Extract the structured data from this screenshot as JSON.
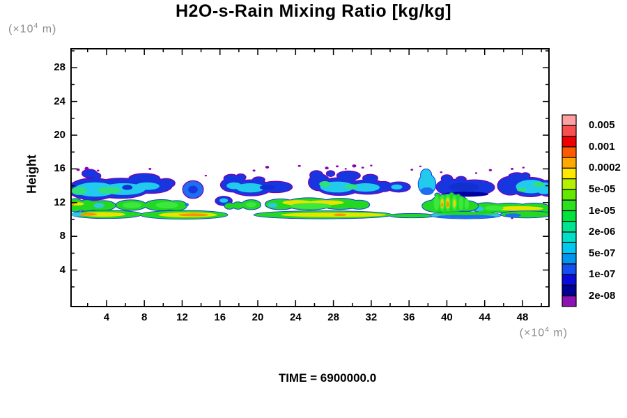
{
  "title": "H2O-s-Rain Mixing Ratio [kg/kg]",
  "time_label": "TIME = 6900000.0",
  "unit": {
    "prefix": "(×10",
    "sup": "4",
    "suffix": " m)"
  },
  "x_axis": {
    "min": 0.25,
    "max": 50.8,
    "minor_step": 2,
    "major_values": [
      4,
      8,
      12,
      16,
      20,
      24,
      28,
      32,
      36,
      40,
      44,
      48
    ],
    "major_labels": [
      "4",
      "8",
      "12",
      "16",
      "20",
      "24",
      "28",
      "32",
      "36",
      "40",
      "44",
      "48"
    ]
  },
  "y_axis": {
    "label": "Height",
    "min": -0.33,
    "max": 30.25,
    "minor_step": 2,
    "major_values": [
      4,
      8,
      12,
      16,
      20,
      24,
      28
    ],
    "major_labels": [
      "4",
      "8",
      "12",
      "16",
      "20",
      "24",
      "28"
    ]
  },
  "colorbar": {
    "levels": [
      "0.005",
      "0.001",
      "0.0002",
      "5e-05",
      "1e-05",
      "2e-06",
      "5e-07",
      "1e-07",
      "2e-08"
    ],
    "colors_top_to_bottom": [
      "#FFA0A0",
      "#F85050",
      "#F00000",
      "#FF5A00",
      "#FFA800",
      "#FFE800",
      "#B4F000",
      "#64E800",
      "#2CE020",
      "#00E23C",
      "#00E492",
      "#00E0C8",
      "#00C8F0",
      "#0096F0",
      "#1450F0",
      "#0A0ADC",
      "#000096",
      "#8C14B4"
    ]
  },
  "chart_data": {
    "type": "heatmap",
    "title": "H2O-s-Rain Mixing Ratio [kg/kg]",
    "xlabel": "(×10^4 m)",
    "ylabel": "Height (×10^4 m)",
    "x_range": [
      0.25,
      50.8
    ],
    "y_range": [
      0,
      30.25
    ],
    "contour_levels_kg_per_kg": [
      "2e-08",
      "1e-07",
      "5e-07",
      "2e-06",
      "1e-05",
      "5e-05",
      "0.0002",
      "0.001",
      "0.005"
    ],
    "summary_features": [
      "upper snow/rain layer, height 12.5-16 x10^4 m, values ~1e-07 to 2e-06 (blue/cyan clouds with purple 2e-08 fringe)",
      "middle layer, height 11-12.5 x10^4 m, values ~1e-05 to 5e-05 (green blobs with yellow tops)",
      "thin low band, height 10.3-11 x10^4 m, values up to 0.0002 (yellow-orange cores)",
      "convective striped column cluster near x=39-42, purple specks scattered above main layer"
    ],
    "groups": [
      {
        "name": "blue-main-left",
        "fill": "#1736E0",
        "stroke": "#7A00B4",
        "sw": 2.5,
        "body": [
          [
            2.6,
            13.6,
            2.6,
            1.25
          ],
          [
            5.5,
            13.7,
            3.0,
            1.15
          ],
          [
            8.7,
            14.0,
            2.2,
            0.85
          ],
          [
            10.3,
            14.3,
            0.9,
            0.5
          ],
          [
            8.0,
            14.85,
            1.6,
            0.55
          ],
          [
            2.2,
            15.45,
            0.75,
            0.45
          ],
          [
            2.9,
            15.15,
            0.45,
            0.35
          ]
        ],
        "cores": [
          [
            2.8,
            13.55,
            2.2,
            0.85,
            "#22CBEE"
          ],
          [
            5.8,
            13.6,
            2.3,
            0.7,
            "#22CBEE"
          ],
          [
            8.3,
            13.95,
            1.3,
            0.45,
            "#22CBEE"
          ],
          [
            1.1,
            13.4,
            0.8,
            0.5,
            "#30E07A"
          ],
          [
            4.3,
            13.45,
            1.2,
            0.4,
            "#30E07A"
          ],
          [
            6.2,
            13.8,
            0.55,
            0.3,
            "#1030D0"
          ]
        ]
      },
      {
        "name": "blue-circle",
        "fill": "#1E6EF0",
        "stroke": "#7A00B4",
        "sw": 2.5,
        "body": [
          [
            13.15,
            13.55,
            1.05,
            1.0
          ]
        ],
        "cores": [
          [
            13.15,
            13.55,
            0.5,
            0.45,
            "#1736E0"
          ]
        ]
      },
      {
        "name": "blue-cloud2",
        "fill": "#1736E0",
        "stroke": "#7A00B4",
        "sw": 2.5,
        "body": [
          [
            17.4,
            14.1,
            1.3,
            0.8
          ],
          [
            19.3,
            13.75,
            2.1,
            0.9
          ],
          [
            21.9,
            13.85,
            1.7,
            0.62
          ],
          [
            17.2,
            14.85,
            0.75,
            0.45
          ],
          [
            18.2,
            15.0,
            0.5,
            0.35
          ],
          [
            20.1,
            14.7,
            0.6,
            0.3
          ],
          [
            16.4,
            12.2,
            0.85,
            0.5
          ]
        ],
        "cores": [
          [
            19.2,
            13.75,
            1.5,
            0.55,
            "#22CBEE"
          ],
          [
            17.5,
            14.0,
            0.8,
            0.4,
            "#22CBEE"
          ],
          [
            21.0,
            13.8,
            0.8,
            0.3,
            "#1030D0"
          ],
          [
            16.4,
            12.25,
            0.45,
            0.26,
            "#22CBEE"
          ]
        ]
      },
      {
        "name": "blue-cloud3",
        "fill": "#1736E0",
        "stroke": "#7A00B4",
        "sw": 2.5,
        "body": [
          [
            26.5,
            14.4,
            1.1,
            0.95
          ],
          [
            28.6,
            13.9,
            2.3,
            1.0
          ],
          [
            31.6,
            13.85,
            2.1,
            0.8
          ],
          [
            33.3,
            13.9,
            0.9,
            0.55
          ],
          [
            26.2,
            15.25,
            0.65,
            0.5
          ],
          [
            29.6,
            15.2,
            1.2,
            0.5
          ],
          [
            31.9,
            14.9,
            0.75,
            0.4
          ],
          [
            27.7,
            15.45,
            0.4,
            0.3
          ],
          [
            34.9,
            13.85,
            1.2,
            0.55
          ]
        ],
        "cores": [
          [
            28.4,
            13.85,
            1.8,
            0.65,
            "#22CBEE"
          ],
          [
            31.4,
            13.8,
            1.5,
            0.5,
            "#22CBEE"
          ],
          [
            27.1,
            14.2,
            0.6,
            0.35,
            "#30E07A"
          ],
          [
            29.9,
            13.9,
            0.7,
            0.3,
            "#30E07A"
          ],
          [
            34.7,
            13.85,
            0.6,
            0.3,
            "#22CBEE"
          ]
        ]
      },
      {
        "name": "cyan-tall-plume",
        "fill": "#22CBEE",
        "stroke": "#1736E0",
        "sw": 2,
        "body": [
          [
            37.9,
            14.2,
            0.9,
            1.2
          ],
          [
            37.8,
            15.3,
            0.55,
            0.65
          ]
        ],
        "cores": [
          [
            37.9,
            13.35,
            0.7,
            0.45,
            "#1E6EF0"
          ]
        ]
      },
      {
        "name": "blue-dark-mass",
        "fill": "#1736E0",
        "stroke": "#7A00B4",
        "sw": 2.5,
        "body": [
          [
            40.4,
            13.85,
            1.5,
            0.9
          ],
          [
            42.9,
            13.8,
            2.1,
            0.85
          ],
          [
            40.0,
            14.85,
            0.55,
            0.4
          ],
          [
            41.5,
            14.75,
            0.5,
            0.3
          ]
        ],
        "cores": [
          [
            41.8,
            13.85,
            1.6,
            0.5,
            "#1030D0"
          ],
          [
            42.0,
            13.0,
            2.4,
            0.3,
            "#0000A0"
          ]
        ]
      },
      {
        "name": "blue-right-cloud",
        "fill": "#1736E0",
        "stroke": "#7A00B4",
        "sw": 2.5,
        "body": [
          [
            46.7,
            14.0,
            1.3,
            1.05
          ],
          [
            48.8,
            13.85,
            2.0,
            1.1
          ],
          [
            50.7,
            13.7,
            1.1,
            0.9
          ],
          [
            47.4,
            15.05,
            0.85,
            0.45
          ],
          [
            48.3,
            15.2,
            0.45,
            0.3
          ]
        ],
        "cores": [
          [
            48.9,
            13.9,
            1.6,
            0.8,
            "#22CBEE"
          ],
          [
            50.3,
            13.7,
            0.9,
            0.7,
            "#22CBEE"
          ],
          [
            49.7,
            14.15,
            0.6,
            0.3,
            "#30E07A"
          ],
          [
            47.9,
            13.55,
            0.5,
            0.25,
            "#30E07A"
          ]
        ]
      },
      {
        "name": "green-mid-layer",
        "fill": "#22D822",
        "stroke": "#1240D8",
        "sw": 2,
        "body": [
          [
            0.7,
            11.7,
            0.85,
            0.75
          ],
          [
            1.9,
            11.65,
            0.95,
            0.65
          ],
          [
            2.9,
            11.65,
            0.75,
            0.55
          ],
          [
            3.6,
            11.65,
            1.35,
            0.55
          ],
          [
            6.6,
            11.7,
            1.6,
            0.58
          ],
          [
            9.8,
            11.7,
            1.75,
            0.62
          ],
          [
            11.4,
            11.65,
            1.1,
            0.55
          ],
          [
            17.0,
            11.6,
            0.5,
            0.35
          ],
          [
            17.9,
            11.65,
            0.55,
            0.4
          ],
          [
            19.3,
            11.75,
            1.0,
            0.55
          ],
          [
            22.4,
            11.8,
            1.6,
            0.6
          ],
          [
            25.4,
            11.85,
            2.5,
            0.68
          ],
          [
            28.7,
            11.85,
            2.1,
            0.62
          ],
          [
            30.7,
            11.75,
            1.1,
            0.5
          ],
          [
            44.2,
            11.4,
            1.6,
            0.55
          ],
          [
            46.6,
            11.35,
            2.1,
            0.55
          ],
          [
            49.2,
            11.3,
            1.9,
            0.6
          ]
        ],
        "cores": [
          [
            0.9,
            11.85,
            0.7,
            0.2,
            "#E8E400"
          ],
          [
            0.35,
            11.85,
            0.3,
            0.12,
            "#FF9000"
          ],
          [
            3.2,
            11.65,
            0.55,
            0.3,
            "#30C8E0"
          ],
          [
            6.7,
            11.7,
            1.0,
            0.35,
            "#3CE83C"
          ],
          [
            10.4,
            11.7,
            1.2,
            0.38,
            "#3CE83C"
          ],
          [
            12.5,
            11.75,
            0.2,
            0.2,
            "#1E6EF0"
          ],
          [
            19.3,
            11.75,
            0.55,
            0.3,
            "#3CE83C"
          ],
          [
            24.2,
            12.0,
            1.6,
            0.3,
            "#E8E400"
          ],
          [
            27.2,
            12.0,
            1.9,
            0.28,
            "#E8E400"
          ],
          [
            25.6,
            11.6,
            2.2,
            0.35,
            "#3CE83C"
          ],
          [
            21.6,
            11.7,
            0.5,
            0.28,
            "#30C8E0"
          ],
          [
            47.6,
            11.3,
            2.6,
            0.28,
            "#E8E400"
          ],
          [
            45.0,
            11.35,
            1.0,
            0.3,
            "#3CE83C"
          ],
          [
            43.4,
            11.25,
            0.5,
            0.3,
            "#30C8E0"
          ]
        ]
      },
      {
        "name": "green-convective-columns",
        "fill": "#22D822",
        "stroke": "#1240D8",
        "sw": 2,
        "body": [
          [
            40.3,
            11.9,
            2.0,
            1.1
          ],
          [
            38.9,
            11.6,
            1.5,
            0.7
          ],
          [
            42.0,
            11.6,
            1.3,
            0.6
          ],
          [
            39.0,
            12.9,
            0.25,
            0.2
          ],
          [
            40.5,
            13.0,
            0.22,
            0.18
          ],
          [
            41.2,
            12.85,
            0.18,
            0.15
          ]
        ],
        "cores": [
          [
            38.9,
            11.95,
            0.3,
            0.85,
            "#3CE83C"
          ],
          [
            39.5,
            11.95,
            0.28,
            0.95,
            "#3CE83C"
          ],
          [
            40.1,
            12.0,
            0.3,
            1.0,
            "#3CE83C"
          ],
          [
            40.8,
            11.95,
            0.28,
            0.9,
            "#3CE83C"
          ],
          [
            41.5,
            11.9,
            0.26,
            0.8,
            "#3CE83C"
          ],
          [
            42.1,
            11.85,
            0.24,
            0.65,
            "#3CE83C"
          ],
          [
            39.5,
            11.9,
            0.16,
            0.6,
            "#F0D800"
          ],
          [
            40.1,
            11.95,
            0.18,
            0.65,
            "#F0D800"
          ],
          [
            40.8,
            11.9,
            0.14,
            0.5,
            "#F0D800"
          ],
          [
            40.1,
            11.8,
            0.12,
            0.34,
            "#FF8C00"
          ],
          [
            39.5,
            11.75,
            0.1,
            0.26,
            "#FF8C00"
          ]
        ]
      },
      {
        "name": "bottom-band-green",
        "fill": "#22D822",
        "stroke": "#1240D8",
        "sw": 1.8,
        "body": [
          [
            4.0,
            10.6,
            3.7,
            0.45
          ],
          [
            12.2,
            10.55,
            4.6,
            0.48
          ],
          [
            26.9,
            10.55,
            7.3,
            0.44
          ],
          [
            36.3,
            10.45,
            2.3,
            0.22
          ],
          [
            48.4,
            10.6,
            2.7,
            0.38
          ]
        ],
        "cores": [
          [
            0.9,
            10.6,
            0.7,
            0.25,
            "#30C8E0"
          ],
          [
            3.6,
            10.6,
            2.4,
            0.28,
            "#E8E400"
          ],
          [
            2.1,
            10.6,
            0.9,
            0.16,
            "#FF9000"
          ],
          [
            12.6,
            10.55,
            3.1,
            0.3,
            "#E8E400"
          ],
          [
            13.2,
            10.55,
            1.6,
            0.17,
            "#FF9000"
          ],
          [
            28.0,
            10.55,
            5.6,
            0.27,
            "#E8E400"
          ],
          [
            28.7,
            10.55,
            0.7,
            0.15,
            "#FF9000"
          ],
          [
            47.0,
            10.5,
            0.85,
            0.22,
            "#1E6EF0"
          ]
        ]
      },
      {
        "name": "bottom-band-cyan",
        "fill": "#30C8E0",
        "stroke": "#1240D8",
        "sw": 1.8,
        "body": [
          [
            42.0,
            10.5,
            3.7,
            0.38
          ]
        ],
        "cores": [
          [
            42.0,
            10.35,
            3.1,
            0.2,
            "#1E6EF0"
          ],
          [
            42.0,
            10.72,
            3.4,
            0.2,
            "#22D822"
          ]
        ]
      },
      {
        "name": "purple-specks",
        "fill": "#8A00B4",
        "sw": 0,
        "body": [
          [
            1.0,
            15.9,
            0.18,
            0.15
          ],
          [
            1.9,
            16.05,
            0.22,
            0.18
          ],
          [
            3.1,
            15.8,
            0.13,
            0.11
          ],
          [
            8.6,
            16.0,
            0.15,
            0.12
          ],
          [
            14.5,
            15.2,
            0.12,
            0.1
          ],
          [
            19.6,
            15.8,
            0.15,
            0.12
          ],
          [
            21.0,
            16.2,
            0.2,
            0.16
          ],
          [
            24.4,
            16.35,
            0.15,
            0.12
          ],
          [
            27.3,
            16.1,
            0.2,
            0.16
          ],
          [
            28.4,
            16.3,
            0.15,
            0.12
          ],
          [
            29.3,
            16.0,
            0.12,
            0.1
          ],
          [
            30.2,
            16.35,
            0.22,
            0.18
          ],
          [
            31.1,
            16.15,
            0.14,
            0.11
          ],
          [
            32.0,
            16.4,
            0.12,
            0.1
          ],
          [
            36.3,
            15.9,
            0.14,
            0.11
          ],
          [
            37.2,
            16.3,
            0.12,
            0.1
          ],
          [
            39.4,
            15.6,
            0.13,
            0.1
          ],
          [
            43.1,
            15.5,
            0.12,
            0.1
          ],
          [
            44.6,
            15.85,
            0.16,
            0.13
          ],
          [
            46.9,
            16.0,
            0.15,
            0.12
          ],
          [
            48.1,
            16.15,
            0.12,
            0.1
          ],
          [
            46.9,
            10.15,
            0.12,
            0.1
          ]
        ],
        "cores": []
      }
    ]
  }
}
